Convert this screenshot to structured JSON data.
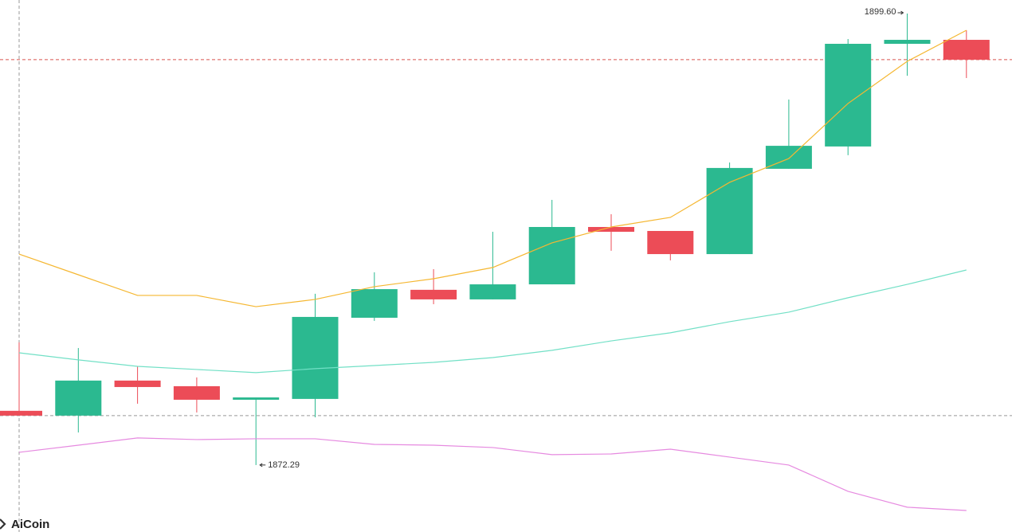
{
  "chart_data": {
    "type": "candlestick",
    "categories": [
      null,
      null,
      null,
      null,
      null,
      null,
      null,
      null,
      null,
      null,
      null,
      null,
      null,
      null,
      null,
      null,
      null
    ],
    "open": [
      1875.57,
      1875.28,
      1877.4,
      1877.06,
      1876.24,
      1876.29,
      1881.2,
      1882.89,
      1882.31,
      1883.22,
      1886.69,
      1886.45,
      1885.05,
      1890.21,
      1891.56,
      1897.77,
      1898.01
    ],
    "high": [
      1879.71,
      1879.37,
      1878.26,
      1877.59,
      1876.38,
      1882.65,
      1883.95,
      1884.14,
      1886.4,
      1888.33,
      1887.46,
      1886.45,
      1890.59,
      1894.4,
      1898.06,
      1899.6,
      1898.59
    ],
    "low": [
      1875.28,
      1874.26,
      1876.0,
      1875.47,
      1872.29,
      1875.18,
      1881.01,
      1882.02,
      1882.31,
      1883.22,
      1885.25,
      1884.67,
      1885.05,
      1890.21,
      1891.03,
      1895.84,
      1895.7
    ],
    "close": [
      1875.28,
      1877.4,
      1877.01,
      1876.24,
      1876.38,
      1881.25,
      1882.93,
      1882.31,
      1883.22,
      1886.69,
      1886.4,
      1885.05,
      1890.26,
      1891.6,
      1897.77,
      1898.01,
      1896.81
    ],
    "up_color": "#2bb990",
    "down_color": "#ec4c57",
    "series": [
      {
        "color": "#f5b731",
        "values": [
          1885.05,
          1883.8,
          1882.55,
          1882.55,
          1881.87,
          1882.31,
          1883.08,
          1883.56,
          1884.24,
          1885.73,
          1886.69,
          1887.27,
          1889.39,
          1890.83,
          1894.16,
          1896.71,
          1898.59
        ]
      },
      {
        "color": "#72e0c6",
        "values": [
          1879.08,
          1878.65,
          1878.26,
          1878.07,
          1877.88,
          1878.12,
          1878.31,
          1878.5,
          1878.79,
          1879.23,
          1879.8,
          1880.29,
          1880.96,
          1881.54,
          1882.41,
          1883.22,
          1884.09
        ]
      },
      {
        "color": "#e68ae0",
        "values": [
          1873.06,
          1873.49,
          1873.93,
          1873.83,
          1873.88,
          1873.88,
          1873.54,
          1873.49,
          1873.35,
          1872.92,
          1872.96,
          1873.25,
          1872.77,
          1872.29,
          1870.7,
          1869.74,
          1869.54
        ]
      }
    ],
    "ylim": [
      1868.24,
      1900.42
    ],
    "price_line": 1896.81,
    "ref_line": 1875.28,
    "max_label": "1899.60",
    "min_label": "1872.29",
    "watermark": "AiCoin"
  }
}
